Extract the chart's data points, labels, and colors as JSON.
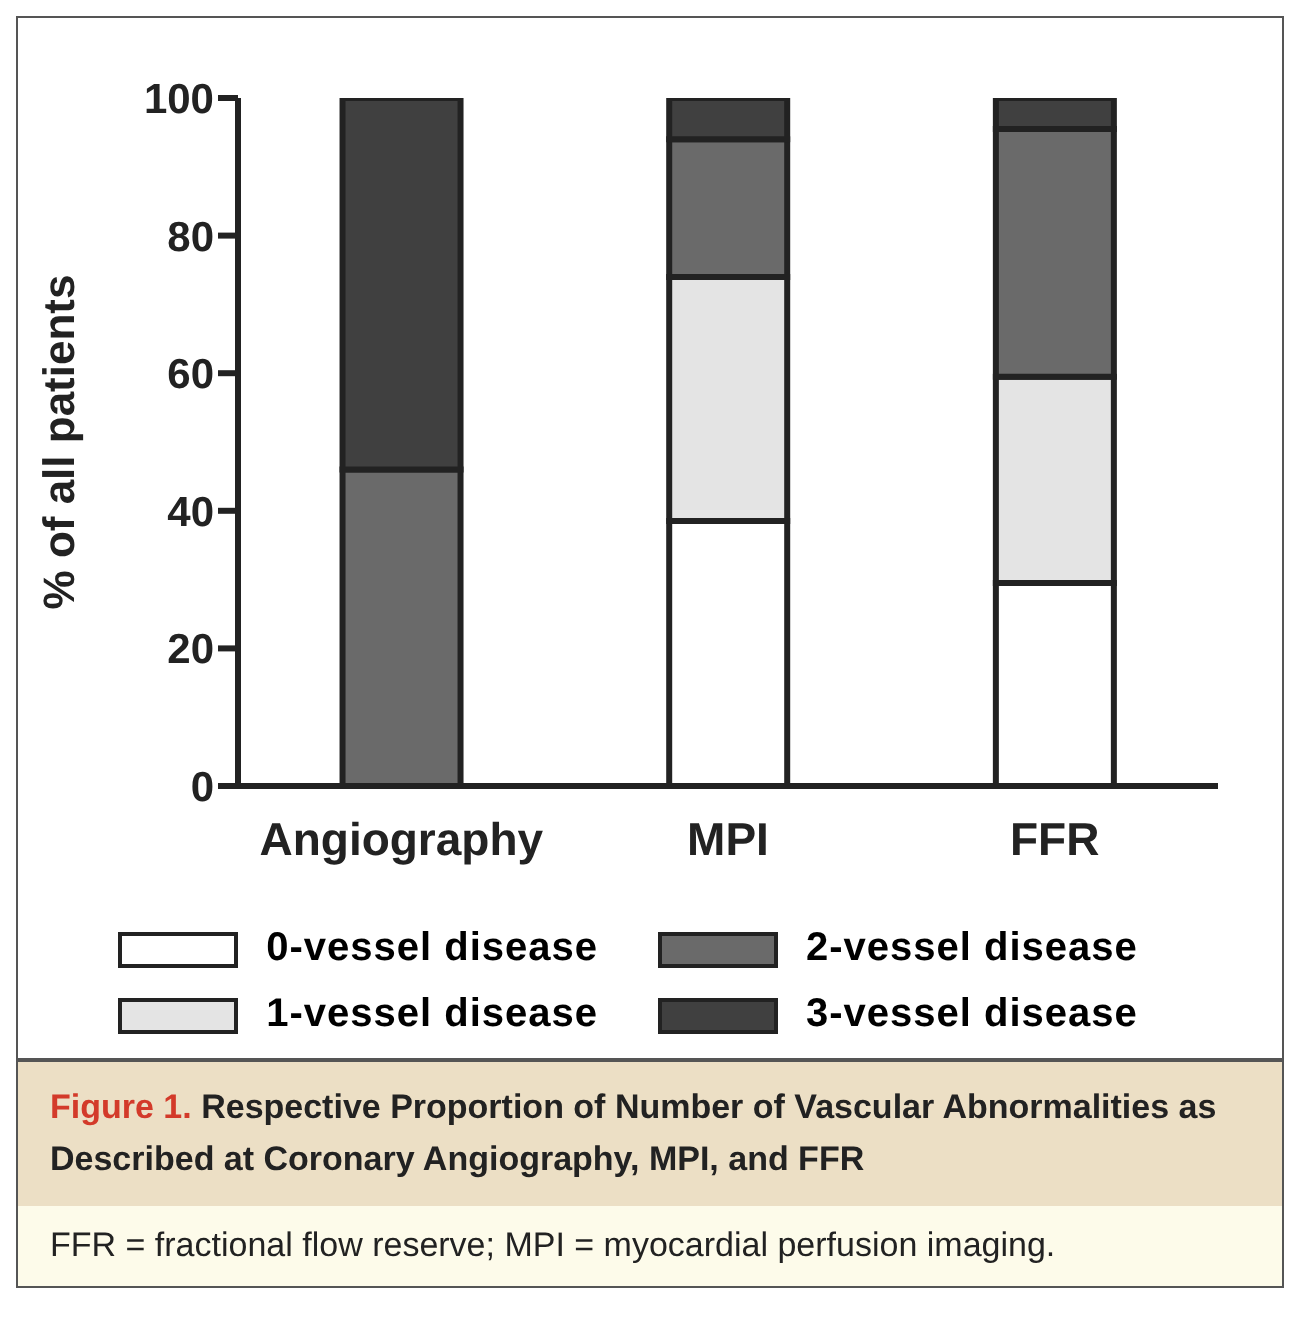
{
  "chart_data": {
    "type": "bar",
    "stacked": true,
    "title": "Figure 1. Respective Proportion of Number of Vascular Abnormalities as Described at Coronary Angiography, MPI, and FFR",
    "ylabel": "% of all patients",
    "categories": [
      "Angiography",
      "MPI",
      "FFR"
    ],
    "series": [
      {
        "name": "0-vessel disease",
        "color": "#ffffff",
        "values": [
          0,
          38.5,
          29.5
        ]
      },
      {
        "name": "1-vessel disease",
        "color": "#e4e4e4",
        "values": [
          0,
          35.5,
          30
        ]
      },
      {
        "name": "2-vessel disease",
        "color": "#6a6a6a",
        "values": [
          46,
          20,
          36
        ]
      },
      {
        "name": "3-vessel disease",
        "color": "#404040",
        "values": [
          54,
          6,
          4.5
        ]
      }
    ],
    "ylim": [
      0,
      100
    ],
    "yticks": [
      0,
      20,
      40,
      60,
      80,
      100
    ],
    "legend": "bottom",
    "annotations": [
      "FFR = fractional flow reserve; MPI = myocardial perfusion imaging."
    ]
  }
}
